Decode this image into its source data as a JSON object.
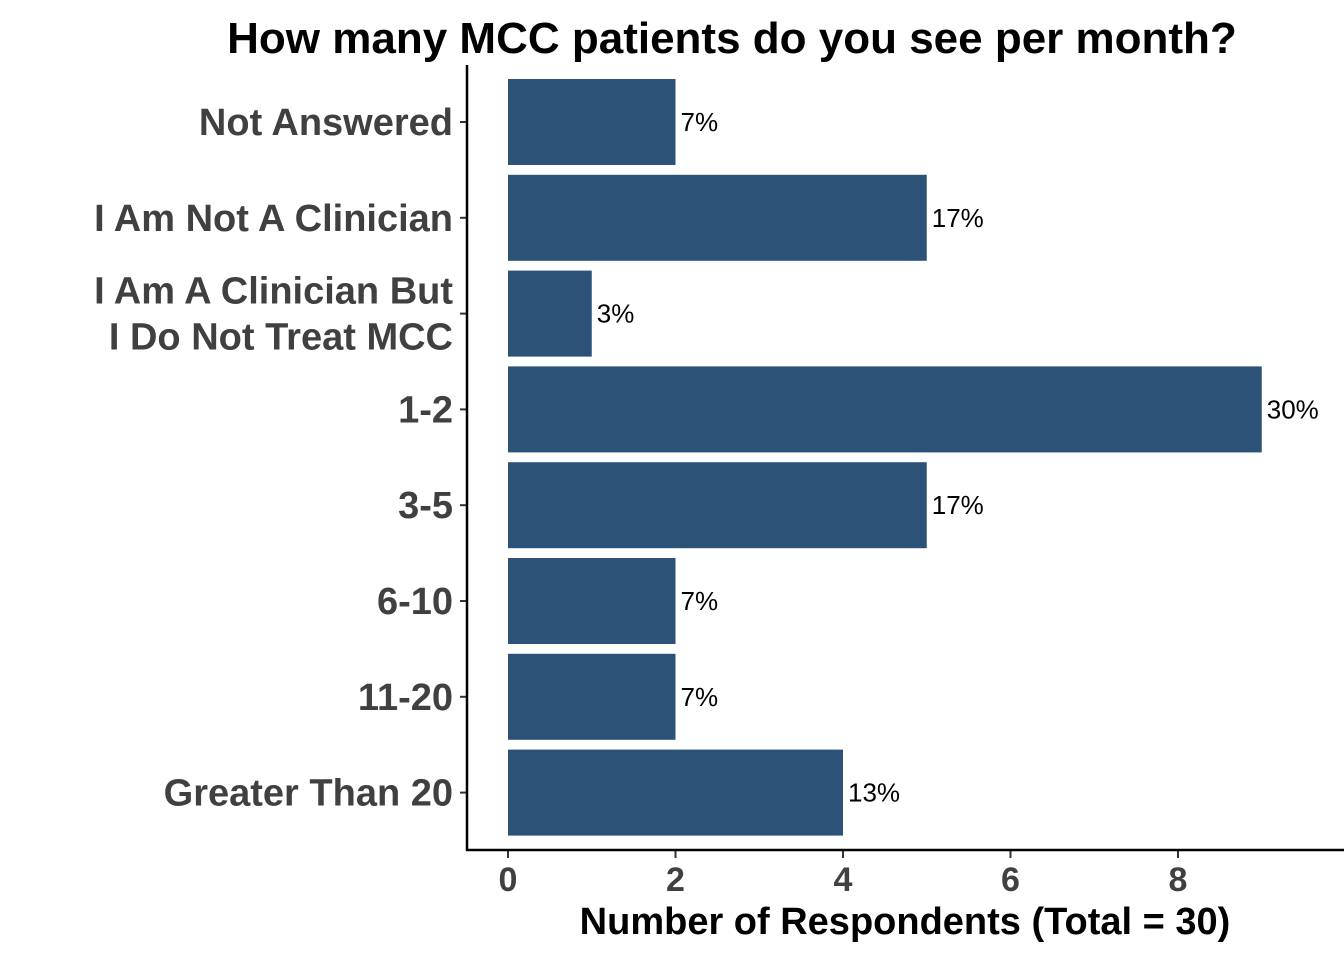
{
  "chart_data": {
    "type": "bar",
    "orientation": "horizontal",
    "title": "How many MCC patients do you see per month?",
    "xlabel": "Number of Respondents (Total = 30)",
    "ylabel": "",
    "categories": [
      [
        "Not Answered"
      ],
      [
        "I Am Not A Clinician"
      ],
      [
        "I Am A Clinician But",
        "I Do Not Treat MCC"
      ],
      [
        "1-2"
      ],
      [
        "3-5"
      ],
      [
        "6-10"
      ],
      [
        "11-20"
      ],
      [
        "Greater Than 20"
      ]
    ],
    "values": [
      2,
      5,
      1,
      9,
      5,
      2,
      2,
      4
    ],
    "data_labels": [
      "7%",
      "17%",
      "3%",
      "30%",
      "17%",
      "7%",
      "7%",
      "13%"
    ],
    "xlim": [
      -0.24,
      10.0
    ],
    "xticks": [
      0,
      2,
      4,
      6,
      8
    ],
    "xtick_labels": [
      "0",
      "2",
      "4",
      "6",
      "8"
    ],
    "grid": false,
    "legend": "none",
    "bar_color": "#2c5277"
  }
}
